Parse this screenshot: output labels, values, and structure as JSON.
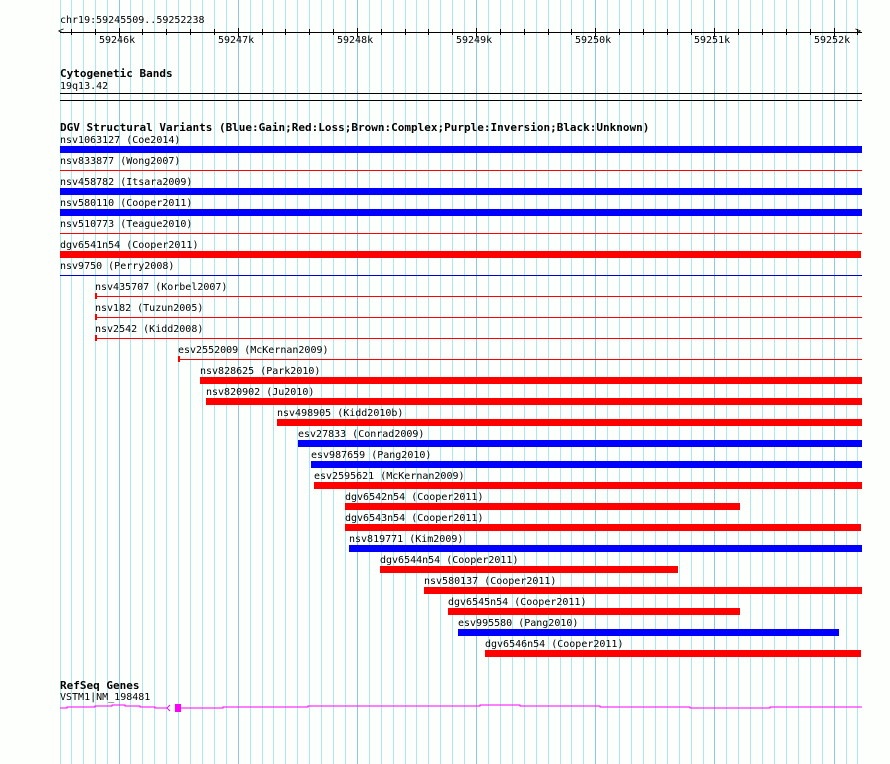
{
  "region": {
    "label": "chr19:59245509..59252238",
    "start": 59245509,
    "end": 59252238
  },
  "ruler": {
    "ticks": [
      {
        "bp": 59246000,
        "label": "59246k"
      },
      {
        "bp": 59247000,
        "label": "59247k"
      },
      {
        "bp": 59248000,
        "label": "59248k"
      },
      {
        "bp": 59249000,
        "label": "59249k"
      },
      {
        "bp": 59250000,
        "label": "59250k"
      },
      {
        "bp": 59251000,
        "label": "59251k"
      },
      {
        "bp": 59252000,
        "label": "59252k"
      }
    ]
  },
  "cytoband": {
    "title": "Cytogenetic Bands",
    "band": "19q13.42"
  },
  "dgv": {
    "title": "DGV Structural Variants (Blue:Gain;Red:Loss;Brown:Complex;Purple:Inversion;Black:Unknown)",
    "colors": {
      "gain": "#0000ff",
      "loss": "#ff0000",
      "thin_gain": "#0000cc"
    },
    "variants": [
      {
        "label": "nsv1063127 (Coe2014)",
        "type": "gain",
        "style": "thick",
        "start": 59245509,
        "end": 59252238
      },
      {
        "label": "nsv833877 (Wong2007)",
        "type": "loss",
        "style": "thin",
        "start": 59245509,
        "end": 59252238
      },
      {
        "label": "nsv458782 (Itsara2009)",
        "type": "gain",
        "style": "thick",
        "start": 59245509,
        "end": 59252238
      },
      {
        "label": "nsv580110 (Cooper2011)",
        "type": "gain",
        "style": "thick",
        "start": 59245509,
        "end": 59252238
      },
      {
        "label": "nsv510773 (Teague2010)",
        "type": "loss",
        "style": "thin",
        "start": 59245509,
        "end": 59252238
      },
      {
        "label": "dgv6541n54 (Cooper2011)",
        "type": "loss",
        "style": "thick",
        "start": 59245509,
        "end": 59252230
      },
      {
        "label": "nsv9750 (Perry2008)",
        "type": "gain",
        "style": "thin",
        "start": 59245509,
        "end": 59252238
      },
      {
        "label": "nsv435707 (Korbel2007)",
        "type": "loss",
        "style": "thin",
        "start": 59245803,
        "end": 59252238
      },
      {
        "label": "nsv182 (Tuzun2005)",
        "type": "loss",
        "style": "thin",
        "start": 59245803,
        "end": 59252238
      },
      {
        "label": "nsv2542 (Kidd2008)",
        "type": "loss",
        "style": "thin",
        "start": 59245803,
        "end": 59252238
      },
      {
        "label": "esv2552009 (McKernan2009)",
        "type": "loss",
        "style": "thin",
        "start": 59246499,
        "end": 59252238
      },
      {
        "label": "nsv828625 (Park2010)",
        "type": "loss",
        "style": "thick",
        "start": 59246684,
        "end": 59252238
      },
      {
        "label": "nsv820902 (Ju2010)",
        "type": "loss",
        "style": "thick",
        "start": 59246734,
        "end": 59252238
      },
      {
        "label": "nsv498905 (Kidd2010b)",
        "type": "loss",
        "style": "thick",
        "start": 59247330,
        "end": 59252238
      },
      {
        "label": "esv27833 (Conrad2009)",
        "type": "gain",
        "style": "thick",
        "start": 59247506,
        "end": 59252238
      },
      {
        "label": "esv987659 (Pang2010)",
        "type": "gain",
        "style": "thick",
        "start": 59247615,
        "end": 59252238
      },
      {
        "label": "esv2595621 (McKernan2009)",
        "type": "loss",
        "style": "thick",
        "start": 59247640,
        "end": 59252238
      },
      {
        "label": "dgv6542n54 (Cooper2011)",
        "type": "loss",
        "style": "thick",
        "start": 59247900,
        "end": 59251215
      },
      {
        "label": "dgv6543n54 (Cooper2011)",
        "type": "loss",
        "style": "thick",
        "start": 59247900,
        "end": 59252230
      },
      {
        "label": "nsv819771 (Kim2009)",
        "type": "gain",
        "style": "thick",
        "start": 59247934,
        "end": 59252238
      },
      {
        "label": "dgv6544n54 (Cooper2011)",
        "type": "loss",
        "style": "thick",
        "start": 59248194,
        "end": 59250694
      },
      {
        "label": "nsv580137 (Cooper2011)",
        "type": "loss",
        "style": "thick",
        "start": 59248563,
        "end": 59252238
      },
      {
        "label": "dgv6545n54 (Cooper2011)",
        "type": "loss",
        "style": "thick",
        "start": 59248765,
        "end": 59251215
      },
      {
        "label": "esv995580 (Pang2010)",
        "type": "gain",
        "style": "thick",
        "start": 59248848,
        "end": 59252045
      },
      {
        "label": "dgv6546n54 (Cooper2011)",
        "type": "loss",
        "style": "thick",
        "start": 59249075,
        "end": 59252230
      }
    ]
  },
  "refseq": {
    "title": "RefSeq Genes",
    "gene": "VSTM1|NM_198481",
    "color": "#ff00ff",
    "strand": "minus",
    "exon_bp": [
      59246450,
      59246500
    ]
  }
}
